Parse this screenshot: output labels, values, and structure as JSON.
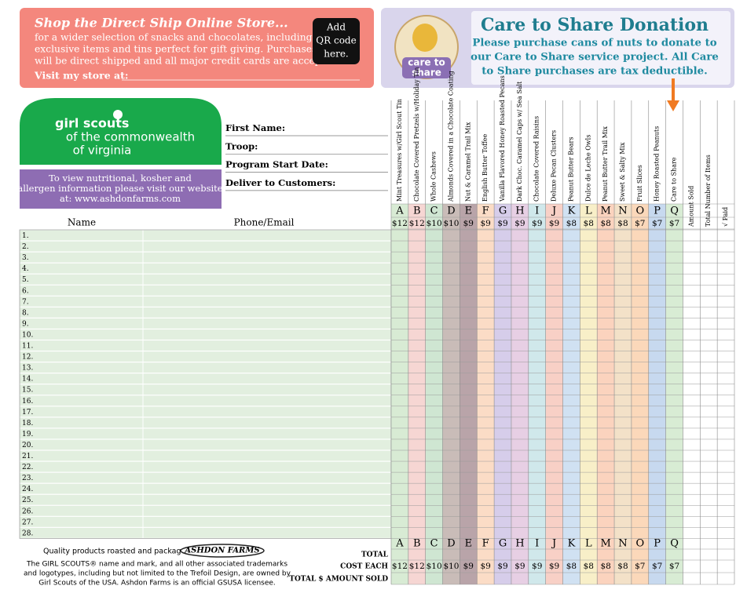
{
  "store": {
    "title": "Shop the Direct Ship Online Store...",
    "lines": [
      "for a wider selection of snacks and chocolates, including",
      "exclusive items and tins perfect for gift giving. Purchases",
      "will be direct shipped and all major credit cards are accepted."
    ],
    "visit": "Visit my store at:",
    "qr": [
      "Add",
      "QR code",
      "here."
    ]
  },
  "care": {
    "title": "Care to Share Donation",
    "lines": [
      "Please purchase cans of nuts to donate to",
      "our Care to Share service project. All Care",
      "to Share purchases are tax deductible."
    ],
    "logo": [
      "care to",
      "share"
    ]
  },
  "logo": {
    "name": "girl scouts",
    "sub": [
      "of the commonwealth",
      "of virginia"
    ]
  },
  "info": [
    "To view nutritional, kosher and",
    "allergen information please visit our website",
    "at: www.ashdonfarms.com"
  ],
  "fields": [
    "First Name:",
    "Troop:",
    "Program Start Date:",
    "Deliver to Customers:"
  ],
  "table": {
    "headers": [
      "Name",
      "Phone/Email"
    ],
    "products": [
      {
        "letter": "A",
        "name": "Mint Treasures w/Girl Scout Tin",
        "price": "$12"
      },
      {
        "letter": "B",
        "name": "Chocolate Covered Pretzels w/Holiday Tin",
        "price": "$12"
      },
      {
        "letter": "C",
        "name": "Whole Cashews",
        "price": "$10"
      },
      {
        "letter": "D",
        "name": "Almonds Covered in a Chocolate Coating",
        "price": "$10"
      },
      {
        "letter": "E",
        "name": "Nut & Caramel Trail Mix",
        "price": "$9"
      },
      {
        "letter": "F",
        "name": "English Butter Toffee",
        "price": "$9"
      },
      {
        "letter": "G",
        "name": "Vanilla Flavored Honey Roasted Pecans",
        "price": "$9"
      },
      {
        "letter": "H",
        "name": "Dark Choc. Caramel Caps w/ Sea Salt",
        "price": "$9"
      },
      {
        "letter": "I",
        "name": "Chocolate Covered Raisins",
        "price": "$9"
      },
      {
        "letter": "J",
        "name": "Deluxe Pecan Clusters",
        "price": "$9"
      },
      {
        "letter": "K",
        "name": "Peanut Butter Bears",
        "price": "$8"
      },
      {
        "letter": "L",
        "name": "Dulce de Leche Owls",
        "price": "$8"
      },
      {
        "letter": "M",
        "name": "Peanut Butter Trail Mix",
        "price": "$8"
      },
      {
        "letter": "N",
        "name": "Sweet & Salty Mix",
        "price": "$8"
      },
      {
        "letter": "O",
        "name": "Fruit Slices",
        "price": "$7"
      },
      {
        "letter": "P",
        "name": "Honey Roasted Peanuts",
        "price": "$7"
      },
      {
        "letter": "Q",
        "name": "Care to Share",
        "price": "$7"
      }
    ],
    "extra": [
      "Amount Sold",
      "Total Number of Items",
      "√ Paid"
    ],
    "rows": [
      "1.",
      "2.",
      "3.",
      "4.",
      "5.",
      "6.",
      "7.",
      "8.",
      "9.",
      "10.",
      "11.",
      "12.",
      "13.",
      "14.",
      "15.",
      "16.",
      "17.",
      "18.",
      "19.",
      "20.",
      "21.",
      "22.",
      "23.",
      "24.",
      "25.",
      "26.",
      "27.",
      "28."
    ],
    "totals": [
      "TOTAL",
      "COST EACH",
      "TOTAL $ AMOUNT SOLD"
    ]
  },
  "footer": {
    "packaged": "Quality products roasted and packaged by:",
    "brand": "ASHDON FARMS",
    "disclaimer": [
      "The GIRL SCOUTS® name and mark, and all other associated trademarks",
      "and logotypes, including but not limited to the Trefoil Design, are owned by",
      "Girl Scouts of the USA.  Ashdon Farms is an official GSUSA licensee."
    ]
  }
}
